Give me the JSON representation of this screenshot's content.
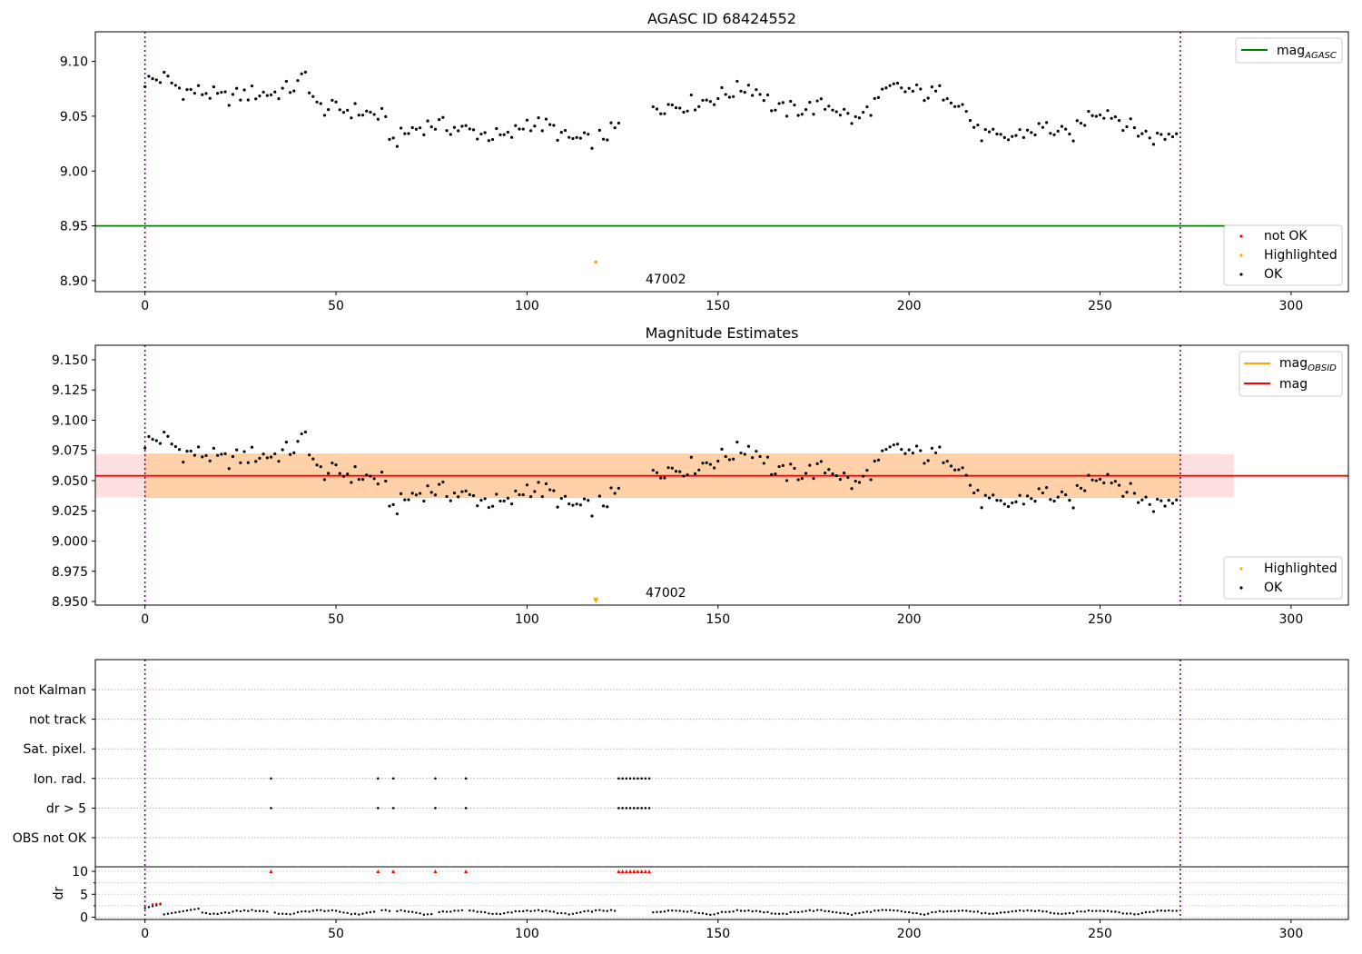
{
  "chart_data": [
    {
      "type": "scatter",
      "title": "AGASC ID 68424552",
      "xlim": [
        -13,
        315
      ],
      "ylim": [
        8.89,
        9.127
      ],
      "xticks": [
        0,
        50,
        100,
        150,
        200,
        250,
        300
      ],
      "yticks": [
        8.9,
        8.95,
        9.0,
        9.05,
        9.1
      ],
      "ytick_labels": [
        "8.90",
        "8.95",
        "9.00",
        "9.05",
        "9.10"
      ],
      "vlines": [
        0,
        271
      ],
      "mag_agasc": 8.95,
      "mag_agasc_xmax": 285,
      "highlighted_point": {
        "x": 118,
        "y": 8.917
      },
      "annotation": {
        "text": "47002",
        "x": 130,
        "y": 8.897
      },
      "legend_lines": [
        {
          "label": "mag",
          "sub": "AGASC",
          "color": "#008000"
        }
      ],
      "legend_markers": [
        {
          "label": "not OK",
          "color": "#ff0000"
        },
        {
          "label": "Highlighted",
          "color": "#ffa500"
        },
        {
          "label": "OK",
          "color": "#000000"
        }
      ]
    },
    {
      "type": "scatter",
      "title": "Magnitude Estimates",
      "xlim": [
        -13,
        315
      ],
      "ylim": [
        8.947,
        9.162
      ],
      "xticks": [
        0,
        50,
        100,
        150,
        200,
        250,
        300
      ],
      "yticks": [
        8.95,
        8.975,
        9.0,
        9.025,
        9.05,
        9.075,
        9.1,
        9.125,
        9.15
      ],
      "ytick_labels": [
        "8.950",
        "8.975",
        "9.000",
        "9.025",
        "9.050",
        "9.075",
        "9.100",
        "9.125",
        "9.150"
      ],
      "vlines": [
        0,
        271
      ],
      "mag": 9.054,
      "mag_band": [
        9.036,
        9.072
      ],
      "obsid_band": [
        9.036,
        9.072
      ],
      "band_xmax": 285,
      "obsid_band_xrange": [
        0,
        271
      ],
      "highlighted_point": {
        "x": 118,
        "y": 8.95
      },
      "annotation": {
        "text": "47002",
        "x": 130,
        "y": 8.954
      },
      "legend_lines": [
        {
          "label": "mag",
          "sub": "OBSID",
          "color": "#ffa500"
        },
        {
          "label": "mag",
          "sub": "",
          "color": "#ff0000"
        }
      ],
      "legend_markers": [
        {
          "label": "Highlighted",
          "color": "#ffa500"
        },
        {
          "label": "OK",
          "color": "#000000"
        }
      ]
    },
    {
      "type": "scatter",
      "title": "",
      "xlim": [
        -13,
        315
      ],
      "xticks": [
        0,
        50,
        100,
        150,
        200,
        250,
        300
      ],
      "vlines": [
        0,
        271
      ],
      "flag_rows": [
        "not Kalman",
        "not track",
        "Sat. pixel.",
        "Ion. rad.",
        "dr > 5",
        "OBS not OK"
      ],
      "flag_points": {
        "Ion. rad.": [
          33,
          61,
          65,
          76,
          84,
          124,
          125,
          126,
          127,
          128,
          129,
          130,
          131,
          132
        ],
        "dr > 5": [
          33,
          61,
          65,
          76,
          84,
          124,
          125,
          126,
          127,
          128,
          129,
          130,
          131,
          132
        ]
      },
      "dr": {
        "ylabel": "dr",
        "ylim": [
          -0.5,
          11
        ],
        "yticks": [
          0,
          5,
          10
        ],
        "ytick_labels": [
          "0",
          "5",
          "10"
        ],
        "clip_value": 10,
        "clipped_x": [
          33,
          61,
          65,
          76,
          84,
          124,
          125,
          126,
          127,
          128,
          129,
          130,
          131,
          132
        ]
      }
    }
  ]
}
